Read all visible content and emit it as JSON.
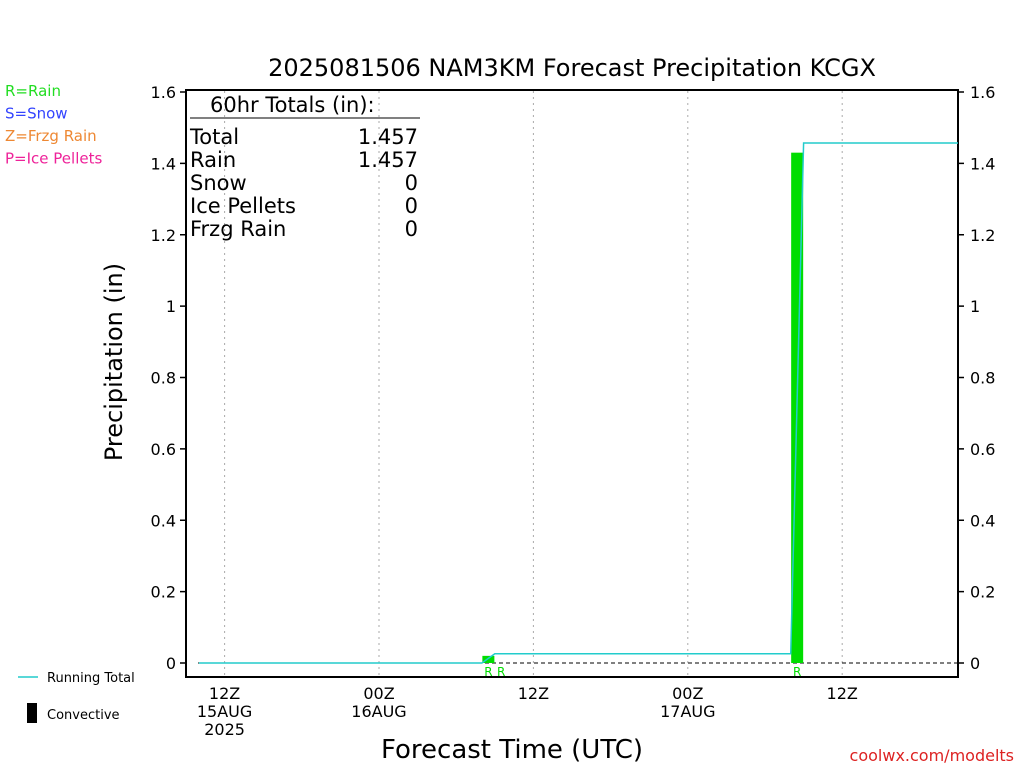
{
  "chart_data": {
    "type": "bar",
    "title": "2025081506 NAM3KM Forecast Precipitation KCGX",
    "xlabel": "Forecast Time (UTC)",
    "ylabel": "Precipitation (in)",
    "ylim": [
      0,
      1.6
    ],
    "yticks": [
      "0",
      "0.2",
      "0.4",
      "0.6",
      "0.8",
      "1",
      "1.2",
      "1.4",
      "1.6"
    ],
    "ytick_values": [
      0,
      0.2,
      0.4,
      0.6,
      0.8,
      1.0,
      1.2,
      1.4,
      1.6
    ],
    "x_range_hours": [
      3,
      63
    ],
    "grid": "vertical dotted",
    "x_ticks": [
      {
        "hour": 6,
        "lines": [
          "12Z",
          "15AUG",
          "2025"
        ]
      },
      {
        "hour": 18,
        "lines": [
          "00Z",
          "16AUG"
        ]
      },
      {
        "hour": 30,
        "lines": [
          "12Z"
        ]
      },
      {
        "hour": 42,
        "lines": [
          "00Z",
          "17AUG"
        ]
      },
      {
        "hour": 54,
        "lines": [
          "12Z"
        ]
      }
    ],
    "bars": [
      {
        "hour": 27,
        "value": 0.02,
        "type": "R",
        "label": "R"
      },
      {
        "hour": 28,
        "value": 0.0,
        "type": "R",
        "label": "R"
      },
      {
        "hour": 51,
        "value": 1.43,
        "type": "R",
        "label": "R"
      }
    ],
    "running_total": {
      "name": "Running Total",
      "points": [
        [
          4,
          0
        ],
        [
          26,
          0
        ],
        [
          27,
          0.026
        ],
        [
          50,
          0.026
        ],
        [
          51,
          1.457
        ],
        [
          63,
          1.457
        ]
      ]
    },
    "totals_box": {
      "header": "60hr Totals (in):",
      "rows": [
        {
          "label": "Total",
          "value": "1.457"
        },
        {
          "label": "Rain",
          "value": "1.457"
        },
        {
          "label": "Snow",
          "value": "0"
        },
        {
          "label": "Ice Pellets",
          "value": "0"
        },
        {
          "label": "Frzg Rain",
          "value": "0"
        }
      ]
    },
    "type_legend": [
      {
        "text": "R=Rain",
        "color": "#22dd22"
      },
      {
        "text": "S=Snow",
        "color": "#3344ff"
      },
      {
        "text": "Z=Frzg Rain",
        "color": "#ee8833"
      },
      {
        "text": "P=Ice Pellets",
        "color": "#ee2299"
      }
    ],
    "series_legend": [
      {
        "text": "Running Total",
        "color": "#22cccc"
      },
      {
        "text": "Convective",
        "color": "#000000"
      }
    ],
    "colors": {
      "rain_bar": "#00dd00",
      "running_total": "#22cccc",
      "grid": "#aaaaaa"
    },
    "credit": "coolwx.com/modelts"
  }
}
